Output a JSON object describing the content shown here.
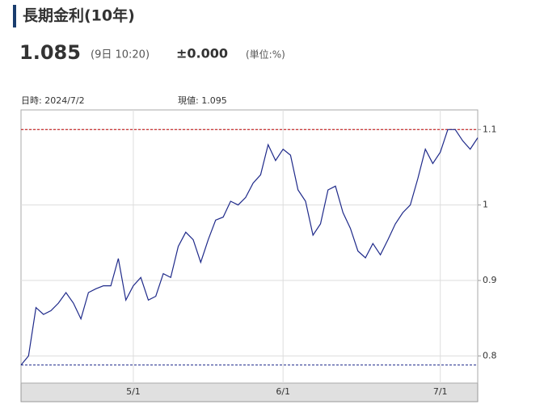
{
  "header": {
    "title": "長期金利(10年)",
    "value": "1.085",
    "time": "(9日 10:20)",
    "change": "±0.000",
    "unit": "(単位:%)"
  },
  "chart_data": {
    "type": "line",
    "date_label": "日時: 2024/7/2",
    "current_label": "現値: 1.095",
    "categories": [
      null,
      null,
      null,
      null,
      null,
      null,
      null,
      null,
      null,
      null,
      null,
      null,
      null,
      null,
      null,
      "5/1",
      null,
      null,
      null,
      null,
      null,
      null,
      null,
      null,
      null,
      null,
      null,
      null,
      null,
      null,
      null,
      null,
      null,
      null,
      null,
      "6/1",
      null,
      null,
      null,
      null,
      null,
      null,
      null,
      null,
      null,
      null,
      null,
      null,
      null,
      null,
      null,
      null,
      null,
      null,
      null,
      null,
      "7/1",
      null,
      null,
      null,
      null,
      null
    ],
    "series": [
      {
        "color": "#1f2a8a",
        "values": [
          0.788,
          0.8,
          0.864,
          0.855,
          0.86,
          0.87,
          0.884,
          0.87,
          0.849,
          0.884,
          0.889,
          0.893,
          0.893,
          0.929,
          0.874,
          0.893,
          0.904,
          0.874,
          0.879,
          0.909,
          0.904,
          0.945,
          0.964,
          0.954,
          0.924,
          0.954,
          0.98,
          0.984,
          1.005,
          1.0,
          1.01,
          1.029,
          1.04,
          1.08,
          1.059,
          1.074,
          1.066,
          1.02,
          1.005,
          0.96,
          0.975,
          1.02,
          1.025,
          0.99,
          0.969,
          0.939,
          0.93,
          0.949,
          0.934,
          0.954,
          0.975,
          0.99,
          1.0,
          1.035,
          1.074,
          1.055,
          1.07,
          1.1,
          1.1,
          1.085,
          1.074,
          1.089
        ]
      }
    ],
    "high_line": {
      "value": 1.1,
      "color": "#c00000"
    },
    "low_line": {
      "value": 0.788,
      "color": "#1f2a8a"
    },
    "ylim": [
      0.764,
      1.126
    ],
    "yticks": [
      0.8,
      0.9,
      1,
      1.1
    ],
    "grid": true
  }
}
